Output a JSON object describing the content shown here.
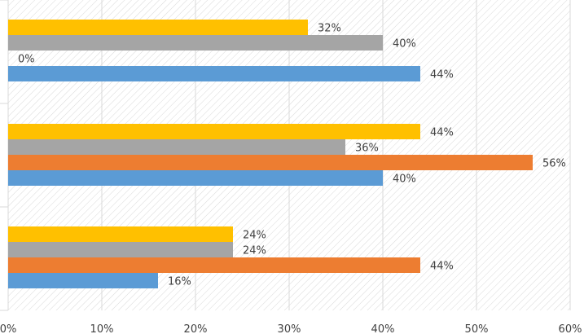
{
  "chart_data": {
    "type": "bar",
    "orientation": "horizontal",
    "xlim": [
      0,
      0.6
    ],
    "x_ticks": [
      "0%",
      "10%",
      "20%",
      "30%",
      "40%",
      "50%",
      "60%"
    ],
    "grid": true,
    "legend": "none",
    "background_pattern": "diagonal-hatch",
    "groups": [
      {
        "bars": [
          {
            "value": 0.32,
            "label": "32%",
            "color": "#FFC000"
          },
          {
            "value": 0.4,
            "label": "40%",
            "color": "#A5A5A5"
          },
          {
            "value": 0.0,
            "label": "0%",
            "color": "#ED7D31"
          },
          {
            "value": 0.44,
            "label": "44%",
            "color": "#5B9BD5"
          }
        ]
      },
      {
        "bars": [
          {
            "value": 0.44,
            "label": "44%",
            "color": "#FFC000"
          },
          {
            "value": 0.36,
            "label": "36%",
            "color": "#A5A5A5"
          },
          {
            "value": 0.56,
            "label": "56%",
            "color": "#ED7D31"
          },
          {
            "value": 0.4,
            "label": "40%",
            "color": "#5B9BD5"
          }
        ]
      },
      {
        "bars": [
          {
            "value": 0.24,
            "label": "24%",
            "color": "#FFC000"
          },
          {
            "value": 0.24,
            "label": "24%",
            "color": "#A5A5A5"
          },
          {
            "value": 0.44,
            "label": "44%",
            "color": "#ED7D31"
          },
          {
            "value": 0.16,
            "label": "16%",
            "color": "#5B9BD5"
          }
        ]
      }
    ]
  }
}
